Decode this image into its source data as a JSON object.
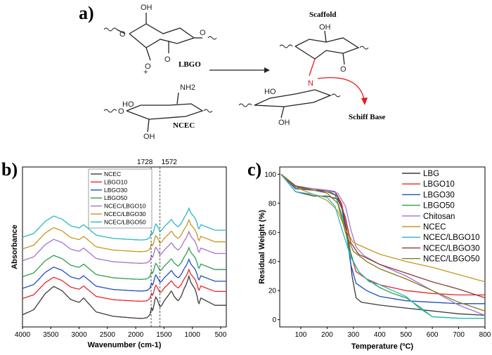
{
  "figure": {
    "panel_a_label": "a)",
    "panel_b_label": "b)",
    "panel_c_label": "c)"
  },
  "scheme": {
    "lbgo_label": "LBGO",
    "ncec_label": "NCEC",
    "scaffold_label": "Scaffold",
    "schiff_base_label": "Schiff Base",
    "plus": "+",
    "oh": "OH",
    "ho": "HO",
    "nh2": "NH2",
    "n": "N",
    "o": "O"
  },
  "chart_data": [
    {
      "id": "ftir",
      "type": "line",
      "xlabel": "Wavenumber (cm-1)",
      "ylabel": "Absorbance",
      "xlim": [
        4000,
        400
      ],
      "x_reversed": true,
      "xticks": [
        4000,
        3500,
        3000,
        2500,
        2000,
        1500,
        1000,
        500
      ],
      "ylim": [
        0,
        10
      ],
      "yticks_visible": false,
      "reference_lines": [
        {
          "x": 1728,
          "label": "1728",
          "style": "dashed"
        },
        {
          "x": 1572,
          "label": "1572",
          "style": "dashed"
        }
      ],
      "legend_position": "top-left",
      "series": [
        {
          "name": "NCEC",
          "color": "#3a3a3a",
          "offset": 0.0
        },
        {
          "name": "LBGO10",
          "color": "#e8262a",
          "offset": 1.2
        },
        {
          "name": "LBGO30",
          "color": "#1f4fc2",
          "offset": 1.9
        },
        {
          "name": "LBGO50",
          "color": "#2e9e4a",
          "offset": 2.7
        },
        {
          "name": "NCEC/LBGO10",
          "color": "#a772c9",
          "offset": 3.8
        },
        {
          "name": "NCEC/LBGO30",
          "color": "#c49a1c",
          "offset": 4.6
        },
        {
          "name": "NCEC/LBGO50",
          "color": "#2ab8c0",
          "offset": 5.4
        }
      ],
      "profile_points": {
        "x": [
          4000,
          3800,
          3600,
          3450,
          3300,
          3150,
          3000,
          2920,
          2850,
          2700,
          2400,
          2100,
          1900,
          1800,
          1740,
          1728,
          1700,
          1650,
          1620,
          1572,
          1540,
          1500,
          1420,
          1370,
          1320,
          1250,
          1200,
          1150,
          1100,
          1060,
          1030,
          1000,
          950,
          900,
          890,
          850,
          800,
          700,
          600,
          500,
          400
        ],
        "y": [
          0.35,
          0.7,
          1.8,
          2.3,
          2.0,
          1.4,
          1.2,
          1.5,
          1.2,
          0.55,
          0.25,
          0.15,
          0.1,
          0.15,
          0.4,
          0.9,
          0.6,
          1.6,
          1.4,
          0.9,
          1.0,
          1.3,
          1.7,
          2.0,
          1.6,
          1.3,
          1.6,
          2.1,
          2.5,
          3.0,
          2.6,
          2.4,
          2.1,
          1.4,
          1.0,
          1.5,
          1.4,
          1.2,
          1.0,
          1.0,
          1.0
        ]
      }
    },
    {
      "id": "tga",
      "type": "line",
      "xlabel": "Temperature (ºC)",
      "ylabel": "Residual Weight (%)",
      "xlim": [
        20,
        800
      ],
      "xticks": [
        100,
        200,
        300,
        400,
        500,
        600,
        700,
        800
      ],
      "ylim": [
        -5,
        105
      ],
      "yticks": [
        0,
        20,
        40,
        60,
        80,
        100
      ],
      "legend_position": "top-right",
      "series": [
        {
          "name": "LBG",
          "color": "#3a3a3a",
          "x": [
            25,
            80,
            150,
            200,
            240,
            260,
            280,
            295,
            310,
            330,
            400,
            500,
            600,
            700,
            800
          ],
          "y": [
            100,
            88,
            85,
            85,
            83,
            75,
            55,
            30,
            15,
            12,
            10,
            8,
            6,
            4,
            3
          ]
        },
        {
          "name": "LBGO10",
          "color": "#e8262a",
          "x": [
            25,
            80,
            150,
            200,
            230,
            255,
            275,
            290,
            310,
            350,
            400,
            500,
            600,
            700,
            800
          ],
          "y": [
            100,
            91,
            90,
            89,
            88,
            80,
            62,
            45,
            33,
            28,
            24,
            20,
            18,
            17,
            17
          ]
        },
        {
          "name": "LBGO30",
          "color": "#1f4fc2",
          "x": [
            25,
            80,
            150,
            200,
            230,
            255,
            275,
            290,
            310,
            350,
            400,
            500,
            600,
            700,
            800
          ],
          "y": [
            100,
            90,
            89,
            89,
            88,
            78,
            57,
            38,
            25,
            20,
            16,
            13,
            12,
            11,
            11
          ]
        },
        {
          "name": "LBGO50",
          "color": "#2e9e4a",
          "x": [
            25,
            80,
            150,
            200,
            230,
            260,
            280,
            300,
            320,
            350,
            400,
            450,
            500,
            550,
            600,
            700,
            800
          ],
          "y": [
            100,
            91,
            90,
            89,
            86,
            70,
            52,
            40,
            33,
            28,
            22,
            18,
            15,
            9,
            2,
            1,
            1
          ]
        },
        {
          "name": "Chitosan",
          "color": "#a772c9",
          "x": [
            25,
            80,
            150,
            200,
            240,
            270,
            290,
            310,
            340,
            400,
            500,
            600,
            700,
            800
          ],
          "y": [
            100,
            92,
            90,
            89,
            87,
            78,
            62,
            50,
            44,
            38,
            30,
            20,
            10,
            3
          ]
        },
        {
          "name": "NCEC",
          "color": "#c49a1c",
          "x": [
            25,
            80,
            150,
            200,
            240,
            270,
            300,
            350,
            400,
            500,
            600,
            700,
            800
          ],
          "y": [
            100,
            91,
            86,
            82,
            75,
            62,
            53,
            49,
            45,
            40,
            36,
            31,
            26
          ]
        },
        {
          "name": "NCEC/LBGO10",
          "color": "#2ab8c0",
          "x": [
            25,
            80,
            150,
            200,
            230,
            260,
            290,
            320,
            360,
            400,
            450,
            500,
            550,
            600,
            700,
            800
          ],
          "y": [
            100,
            88,
            86,
            84,
            78,
            60,
            43,
            33,
            26,
            24,
            20,
            16,
            8,
            2,
            1,
            1
          ]
        },
        {
          "name": "NCEC/LBGO30",
          "color": "#8b3a3a",
          "x": [
            25,
            80,
            150,
            200,
            240,
            270,
            290,
            320,
            400,
            500,
            600,
            700,
            800
          ],
          "y": [
            100,
            92,
            89,
            88,
            85,
            70,
            53,
            45,
            38,
            32,
            26,
            21,
            15
          ]
        },
        {
          "name": "NCEC/LBGO50",
          "color": "#7d7d22",
          "x": [
            25,
            80,
            150,
            200,
            240,
            270,
            300,
            350,
            400,
            500,
            600,
            700,
            800
          ],
          "y": [
            100,
            91,
            89,
            87,
            80,
            60,
            47,
            40,
            35,
            28,
            20,
            12,
            6
          ]
        }
      ]
    }
  ]
}
